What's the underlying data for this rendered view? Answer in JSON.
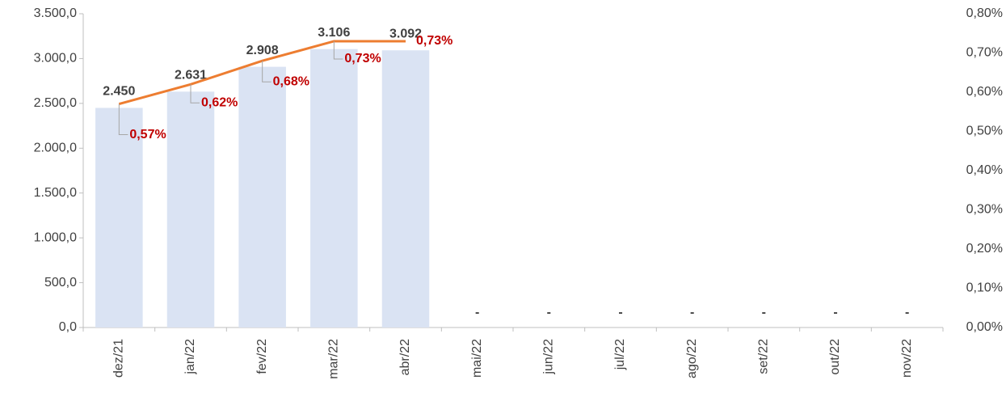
{
  "chart_data": {
    "type": "bar",
    "categories": [
      "dez/21",
      "jan/22",
      "fev/22",
      "mar/22",
      "abr/22",
      "mai/22",
      "jun/22",
      "jul/22",
      "ago/22",
      "set/22",
      "out/22",
      "nov/22"
    ],
    "series": [
      {
        "type": "bar",
        "color": "#dae3f3",
        "label_color": "#404040",
        "values": [
          2450,
          2631,
          2908,
          3106,
          3092,
          null,
          null,
          null,
          null,
          null,
          null,
          null
        ],
        "value_labels": [
          "2.450",
          "2.631",
          "2.908",
          "3.106",
          "3.092",
          "-",
          "-",
          "-",
          "-",
          "-",
          "-",
          "-"
        ]
      },
      {
        "type": "line",
        "axis": "y2",
        "color": "#ed7d31",
        "label_color": "#c00000",
        "values": [
          0.57,
          0.62,
          0.68,
          0.73,
          0.73,
          null,
          null,
          null,
          null,
          null,
          null,
          null
        ],
        "value_labels": [
          "0,57%",
          "0,62%",
          "0,68%",
          "0,73%",
          "0,73%",
          null,
          null,
          null,
          null,
          null,
          null,
          null
        ]
      }
    ],
    "ylim": [
      0,
      3500
    ],
    "yticks": [
      {
        "value": 0,
        "label": "0,0"
      },
      {
        "value": 500,
        "label": "500,0"
      },
      {
        "value": 1000,
        "label": "1.000,0"
      },
      {
        "value": 1500,
        "label": "1.500,0"
      },
      {
        "value": 2000,
        "label": "2.000,0"
      },
      {
        "value": 2500,
        "label": "2.500,0"
      },
      {
        "value": 3000,
        "label": "3.000,0"
      },
      {
        "value": 3500,
        "label": "3.500,0"
      }
    ],
    "y2lim": [
      0,
      0.8
    ],
    "y2ticks": [
      {
        "value": 0,
        "label": "0,00%"
      },
      {
        "value": 0.1,
        "label": "0,10%"
      },
      {
        "value": 0.2,
        "label": "0,20%"
      },
      {
        "value": 0.3,
        "label": "0,30%"
      },
      {
        "value": 0.4,
        "label": "0,40%"
      },
      {
        "value": 0.5,
        "label": "0,50%"
      },
      {
        "value": 0.6,
        "label": "0,60%"
      },
      {
        "value": 0.7,
        "label": "0,70%"
      },
      {
        "value": 0.8,
        "label": "0,80%"
      }
    ]
  }
}
